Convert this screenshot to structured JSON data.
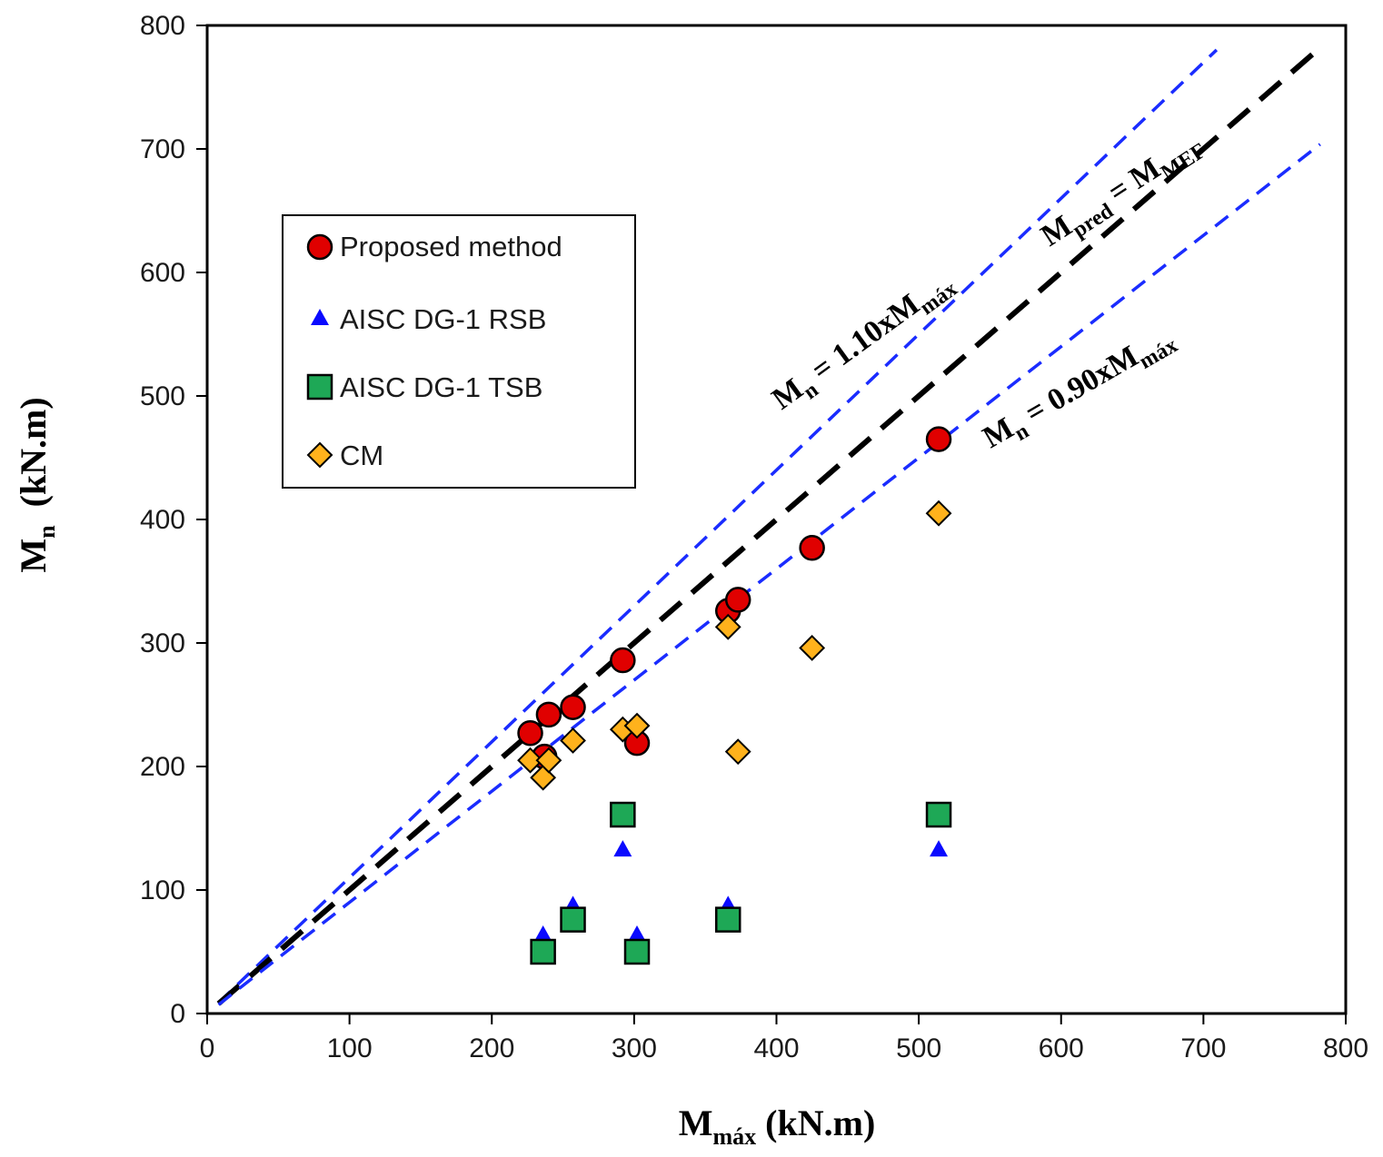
{
  "chart_data": {
    "type": "scatter",
    "title": "",
    "xlabel": {
      "main": "M",
      "sub": "máx",
      "units": " (kN.m)"
    },
    "ylabel": {
      "main": "M",
      "sub": "n",
      "units": "  (kN.m)"
    },
    "xlim": [
      0,
      800
    ],
    "ylim": [
      0,
      800
    ],
    "xticks": [
      0,
      100,
      200,
      300,
      400,
      500,
      600,
      700,
      800
    ],
    "yticks": [
      0,
      100,
      200,
      300,
      400,
      500,
      600,
      700,
      800
    ],
    "grid": false,
    "legend_position": "upper-left",
    "series": [
      {
        "name": "Proposed method",
        "marker": "circle",
        "color": "#e00000",
        "points": [
          [
            227,
            227
          ],
          [
            237,
            208
          ],
          [
            240,
            242
          ],
          [
            257,
            248
          ],
          [
            292,
            286
          ],
          [
            302,
            219
          ],
          [
            366,
            326
          ],
          [
            373,
            335
          ],
          [
            425,
            377
          ],
          [
            514,
            465
          ]
        ]
      },
      {
        "name": "AISC DG-1 RSB",
        "marker": "triangle",
        "color": "#0a0aff",
        "points": [
          [
            236,
            64
          ],
          [
            257,
            88
          ],
          [
            292,
            133
          ],
          [
            302,
            64
          ],
          [
            366,
            88
          ],
          [
            514,
            133
          ]
        ]
      },
      {
        "name": "AISC DG-1 TSB",
        "marker": "square",
        "color": "#1ea856",
        "points": [
          [
            236,
            50
          ],
          [
            257,
            76
          ],
          [
            292,
            161
          ],
          [
            302,
            50
          ],
          [
            366,
            76
          ],
          [
            514,
            161
          ]
        ]
      },
      {
        "name": "CM",
        "marker": "diamond",
        "color": "#ffb21c",
        "points": [
          [
            227,
            205
          ],
          [
            236,
            191
          ],
          [
            240,
            205
          ],
          [
            257,
            221
          ],
          [
            292,
            230
          ],
          [
            302,
            233
          ],
          [
            366,
            313
          ],
          [
            373,
            212
          ],
          [
            425,
            296
          ],
          [
            514,
            405
          ]
        ]
      }
    ],
    "reference_lines": [
      {
        "name": "upper",
        "slope": 1.1,
        "color": "#1a2cff",
        "label_main": "M",
        "label_sub": "n",
        "label_rest": " = 1.10xM",
        "label_sub2": "máx"
      },
      {
        "name": "equality",
        "slope": 1.0,
        "color": "#000000",
        "label_main": "M",
        "label_sub": "pred",
        "label_rest": " = M",
        "label_sub2": "MEF"
      },
      {
        "name": "lower",
        "slope": 0.9,
        "color": "#1a2cff",
        "label_main": "M",
        "label_sub": "n",
        "label_rest": " = 0.90xM",
        "label_sub2": "máx"
      }
    ]
  }
}
